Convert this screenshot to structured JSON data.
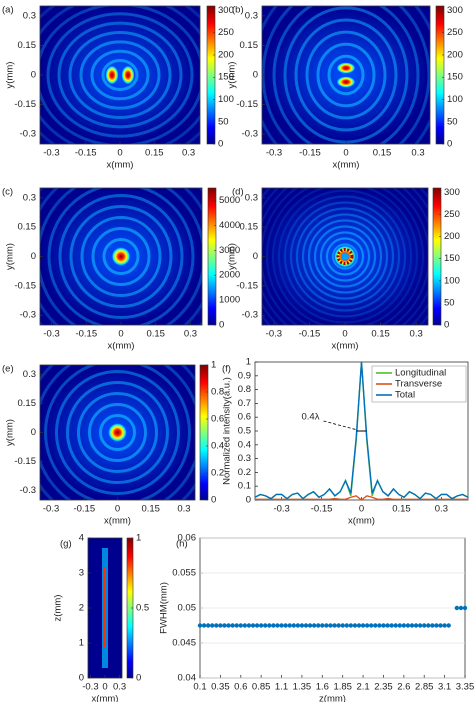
{
  "chart_data": [
    {
      "type": "heatmap",
      "label": "(a)",
      "xlabel": "x(mm)",
      "ylabel": "y(mm)",
      "xlim": [
        -0.35,
        0.35
      ],
      "xticks": [
        -0.3,
        -0.15,
        0,
        0.15,
        0.3
      ],
      "ylim": [
        -0.35,
        0.35
      ],
      "yticks": [
        -0.3,
        -0.15,
        0,
        0.15,
        0.3
      ],
      "clim": [
        0,
        310
      ],
      "cticks": [
        0,
        50,
        100,
        150,
        200,
        250,
        300
      ]
    },
    {
      "type": "heatmap",
      "label": "(b)",
      "xlabel": "x(mm)",
      "ylabel": "y(mm)",
      "xlim": [
        -0.35,
        0.35
      ],
      "xticks": [
        -0.3,
        -0.15,
        0,
        0.15,
        0.3
      ],
      "ylim": [
        -0.35,
        0.35
      ],
      "yticks": [
        -0.3,
        -0.15,
        0,
        0.15,
        0.3
      ],
      "clim": [
        0,
        310
      ],
      "cticks": [
        0,
        50,
        100,
        150,
        200,
        250,
        300
      ]
    },
    {
      "type": "heatmap",
      "label": "(c)",
      "xlabel": "x(mm)",
      "ylabel": "y(mm)",
      "xlim": [
        -0.35,
        0.35
      ],
      "xticks": [
        -0.3,
        -0.15,
        0,
        0.15,
        0.3
      ],
      "ylim": [
        -0.35,
        0.35
      ],
      "yticks": [
        -0.3,
        -0.15,
        0,
        0.15,
        0.3
      ],
      "clim": [
        0,
        5500
      ],
      "cticks": [
        0,
        1000,
        2000,
        3000,
        4000,
        5000
      ]
    },
    {
      "type": "heatmap",
      "label": "(d)",
      "xlabel": "x(mm)",
      "ylabel": "y(mm)",
      "xlim": [
        -0.35,
        0.35
      ],
      "xticks": [
        -0.3,
        -0.15,
        0,
        0.15,
        0.3
      ],
      "ylim": [
        -0.35,
        0.35
      ],
      "yticks": [
        -0.3,
        -0.15,
        0,
        0.15,
        0.3
      ],
      "clim": [
        0,
        310
      ],
      "cticks": [
        0,
        50,
        100,
        150,
        200,
        250,
        300
      ]
    },
    {
      "type": "heatmap",
      "label": "(e)",
      "xlabel": "x(mm)",
      "ylabel": "y(mm)",
      "xlim": [
        -0.35,
        0.35
      ],
      "xticks": [
        -0.3,
        -0.15,
        0,
        0.15,
        0.3
      ],
      "ylim": [
        -0.35,
        0.35
      ],
      "yticks": [
        -0.3,
        -0.15,
        0,
        0.15,
        0.3
      ],
      "clim": [
        0,
        1
      ],
      "cticks": [
        0,
        0.2,
        0.4,
        0.6,
        0.8,
        1
      ]
    },
    {
      "type": "line",
      "label": "(f)",
      "xlabel": "x(mm)",
      "ylabel": "Normalized intensity(a.u.)",
      "annotation": "0.4λ",
      "legend": "north-east",
      "xlim": [
        -0.4,
        0.4
      ],
      "xticks": [
        -0.3,
        -0.15,
        0,
        0.15,
        0.3
      ],
      "ylim": [
        0,
        1
      ],
      "yticks": [
        0,
        0.1,
        0.2,
        0.3,
        0.4,
        0.5,
        0.6,
        0.7,
        0.8,
        0.9,
        1
      ],
      "x": [
        -0.4,
        -0.38,
        -0.36,
        -0.34,
        -0.32,
        -0.3,
        -0.28,
        -0.26,
        -0.24,
        -0.22,
        -0.2,
        -0.18,
        -0.16,
        -0.14,
        -0.12,
        -0.1,
        -0.08,
        -0.06,
        -0.04,
        -0.02,
        0,
        0.02,
        0.04,
        0.06,
        0.08,
        0.1,
        0.12,
        0.14,
        0.16,
        0.18,
        0.2,
        0.22,
        0.24,
        0.26,
        0.28,
        0.3,
        0.32,
        0.34,
        0.36,
        0.38,
        0.4
      ],
      "series": [
        {
          "name": "Longitudinal",
          "color": "#4dbd33",
          "values": [
            0.02,
            0.04,
            0.03,
            0.01,
            0.04,
            0.04,
            0.01,
            0.04,
            0.05,
            0.01,
            0.04,
            0.06,
            0.02,
            0.04,
            0.08,
            0.03,
            0.06,
            0.14,
            0.03,
            0.43,
            1,
            0.43,
            0.03,
            0.14,
            0.06,
            0.03,
            0.08,
            0.04,
            0.02,
            0.06,
            0.04,
            0.01,
            0.05,
            0.04,
            0.01,
            0.04,
            0.04,
            0.01,
            0.03,
            0.04,
            0.02
          ]
        },
        {
          "name": "Transverse",
          "color": "#d95319",
          "values": [
            0.005,
            0.005,
            0.005,
            0.005,
            0.005,
            0.005,
            0.005,
            0.005,
            0.005,
            0.005,
            0.005,
            0.005,
            0.005,
            0.005,
            0.005,
            0.01,
            0.005,
            0.005,
            0.02,
            0.03,
            0,
            0.03,
            0.02,
            0.005,
            0.005,
            0.01,
            0.005,
            0.005,
            0.005,
            0.005,
            0.005,
            0.005,
            0.005,
            0.005,
            0.005,
            0.005,
            0.005,
            0.005,
            0.005,
            0.005,
            0.005
          ]
        },
        {
          "name": "Total",
          "color": "#0072bd",
          "values": [
            0.02,
            0.04,
            0.03,
            0.01,
            0.04,
            0.04,
            0.01,
            0.04,
            0.05,
            0.01,
            0.04,
            0.06,
            0.02,
            0.04,
            0.08,
            0.03,
            0.06,
            0.14,
            0.05,
            0.45,
            1,
            0.45,
            0.05,
            0.14,
            0.06,
            0.03,
            0.08,
            0.04,
            0.02,
            0.06,
            0.04,
            0.01,
            0.05,
            0.04,
            0.01,
            0.04,
            0.04,
            0.01,
            0.03,
            0.04,
            0.02
          ]
        }
      ]
    },
    {
      "type": "heatmap",
      "label": "(g)",
      "xlabel": "x(mm)",
      "ylabel": "z(mm)",
      "xlim": [
        -0.35,
        0.35
      ],
      "xticks": [
        -0.3,
        0,
        0.3
      ],
      "ylim": [
        0,
        4
      ],
      "yticks": [
        0,
        1,
        2,
        3,
        4
      ],
      "clim": [
        0,
        1
      ],
      "cticks": [
        0,
        0.5,
        1
      ]
    },
    {
      "type": "scatter",
      "label": "(h)",
      "xlabel": "z(mm)",
      "ylabel": "FWHM(mm)",
      "color": "#0072bd",
      "xlim": [
        0.1,
        3.35
      ],
      "xticks": [
        0.1,
        0.35,
        0.6,
        0.85,
        1.1,
        1.35,
        1.6,
        1.85,
        2.1,
        2.35,
        2.6,
        2.85,
        3.1,
        3.35
      ],
      "ylim": [
        0.04,
        0.06
      ],
      "yticks": [
        0.04,
        0.045,
        0.05,
        0.055,
        0.06
      ],
      "x": [
        0.1,
        0.15,
        0.2,
        0.25,
        0.3,
        0.35,
        0.4,
        0.45,
        0.5,
        0.55,
        0.6,
        0.65,
        0.7,
        0.75,
        0.8,
        0.85,
        0.9,
        0.95,
        1,
        1.05,
        1.1,
        1.15,
        1.2,
        1.25,
        1.3,
        1.35,
        1.4,
        1.45,
        1.5,
        1.55,
        1.6,
        1.65,
        1.7,
        1.75,
        1.8,
        1.85,
        1.9,
        1.95,
        2,
        2.05,
        2.1,
        2.15,
        2.2,
        2.25,
        2.3,
        2.35,
        2.4,
        2.45,
        2.5,
        2.55,
        2.6,
        2.65,
        2.7,
        2.75,
        2.8,
        2.85,
        2.9,
        2.95,
        3,
        3.05,
        3.1,
        3.15,
        3.25,
        3.3,
        3.35
      ],
      "values": [
        0.0475,
        0.0475,
        0.0475,
        0.0475,
        0.0475,
        0.0475,
        0.0475,
        0.0475,
        0.0475,
        0.0475,
        0.0475,
        0.0475,
        0.0475,
        0.0475,
        0.0475,
        0.0475,
        0.0475,
        0.0475,
        0.0475,
        0.0475,
        0.0475,
        0.0475,
        0.0475,
        0.0475,
        0.0475,
        0.0475,
        0.0475,
        0.0475,
        0.0475,
        0.0475,
        0.0475,
        0.0475,
        0.0475,
        0.0475,
        0.0475,
        0.0475,
        0.0475,
        0.0475,
        0.0475,
        0.0475,
        0.0475,
        0.0475,
        0.0475,
        0.0475,
        0.0475,
        0.0475,
        0.0475,
        0.0475,
        0.0475,
        0.0475,
        0.0475,
        0.0475,
        0.0475,
        0.0475,
        0.0475,
        0.0475,
        0.0475,
        0.0475,
        0.0475,
        0.0475,
        0.0475,
        0.0475,
        0.05,
        0.05,
        0.05
      ]
    }
  ]
}
